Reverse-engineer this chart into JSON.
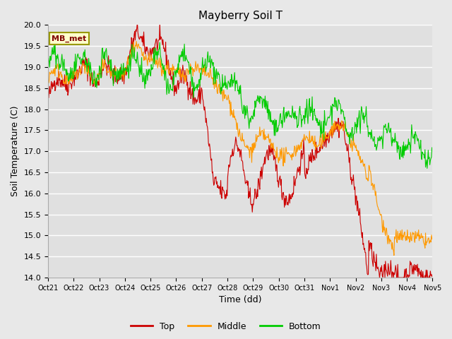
{
  "title": "Mayberry Soil T",
  "xlabel": "Time (dd)",
  "ylabel": "Soil Temperature (C)",
  "ylim": [
    14.0,
    20.0
  ],
  "yticks": [
    14.0,
    14.5,
    15.0,
    15.5,
    16.0,
    16.5,
    17.0,
    17.5,
    18.0,
    18.5,
    19.0,
    19.5,
    20.0
  ],
  "xtick_labels": [
    "Oct 21",
    "Oct 22",
    "Oct 23",
    "Oct 24",
    "Oct 25",
    "Oct 26",
    "Oct 27",
    "Oct 28",
    "Oct 29",
    "Oct 30",
    "Oct 31",
    "Nov 1",
    "Nov 2",
    "Nov 3",
    "Nov 4",
    "Nov 5"
  ],
  "legend_label": "MB_met",
  "line_colors": {
    "top": "#cc0000",
    "middle": "#ff9900",
    "bottom": "#00cc00"
  },
  "fig_bg_color": "#e8e8e8",
  "plot_bg_color": "#e0e0e0",
  "grid_color": "#ffffff",
  "legend_box_facecolor": "#ffffcc",
  "legend_box_edgecolor": "#999900",
  "legend_text_color": "#800000"
}
